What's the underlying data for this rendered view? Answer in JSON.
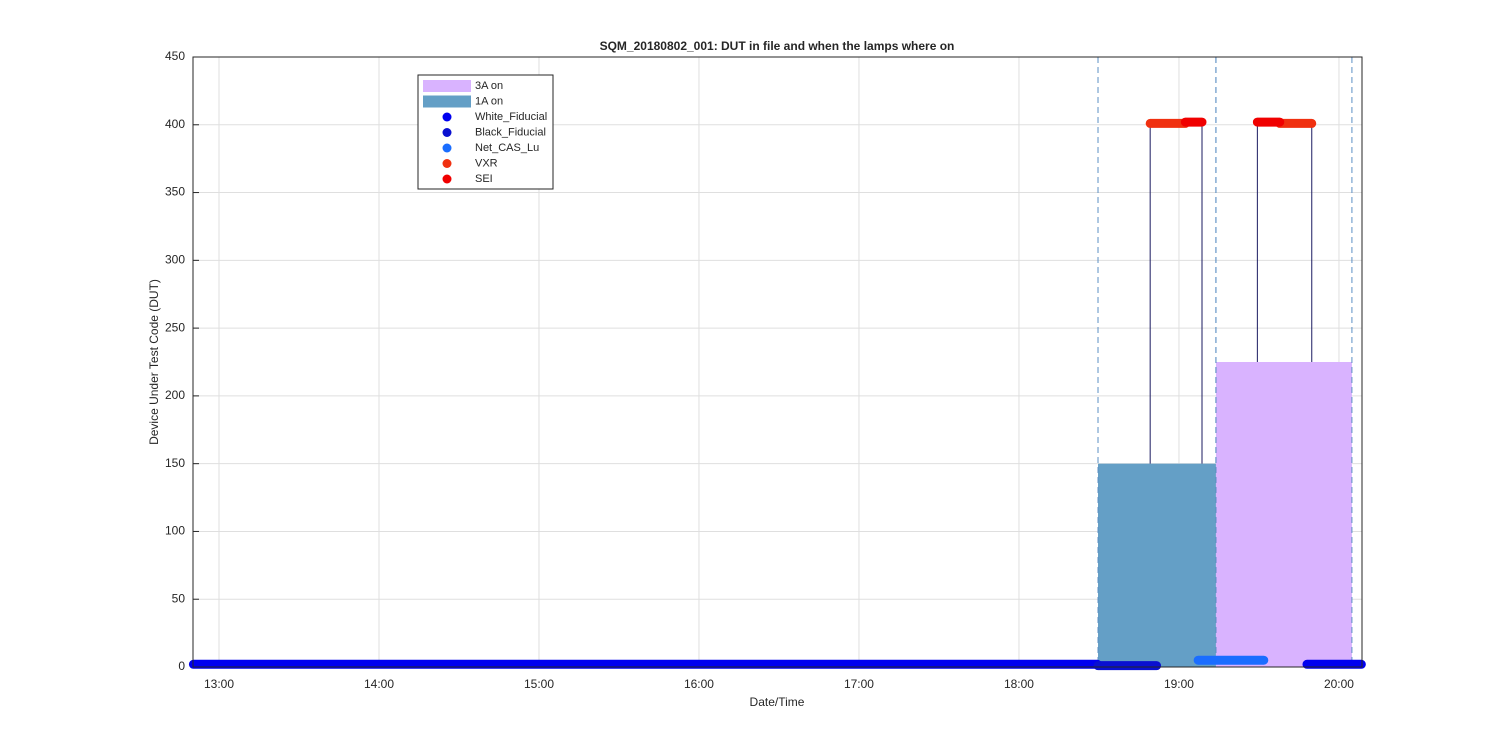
{
  "chart_data": {
    "type": "scatter",
    "title": "SQM_20180802_001: DUT in file and when the lamps where on",
    "xlabel": "Date/Time",
    "ylabel": "Device Under Test Code (DUT)",
    "xlim": [
      12.8375,
      20.144
    ],
    "ylim": [
      0,
      450
    ],
    "xticks": [
      {
        "value": 13,
        "label": "13:00"
      },
      {
        "value": 14,
        "label": "14:00"
      },
      {
        "value": 15,
        "label": "15:00"
      },
      {
        "value": 16,
        "label": "16:00"
      },
      {
        "value": 17,
        "label": "17:00"
      },
      {
        "value": 18,
        "label": "18:00"
      },
      {
        "value": 19,
        "label": "19:00"
      },
      {
        "value": 20,
        "label": "20:00"
      }
    ],
    "yticks": [
      0,
      50,
      100,
      150,
      200,
      250,
      300,
      350,
      400,
      450
    ],
    "grid": true,
    "legend": "upper left",
    "areas": [
      {
        "name": "3A on",
        "color": "#d9b3ff",
        "x": [
          19.231,
          20.081
        ],
        "value": 225
      },
      {
        "name": "1A on",
        "color": "#649fc6",
        "x": [
          18.494,
          19.231
        ],
        "value": 150
      }
    ],
    "series": [
      {
        "name": "White_Fiducial",
        "color": "#0000f0",
        "x": [
          12.84,
          18.49,
          18.6,
          19.8,
          20.14
        ],
        "values": [
          2,
          2,
          null,
          2,
          2
        ]
      },
      {
        "name": "Black_Fiducial",
        "color": "#0a10d0",
        "x": [
          18.494,
          18.86
        ],
        "values": [
          1,
          1
        ]
      },
      {
        "name": "Net_CAS_Lu",
        "color": "#1a6dff",
        "x": [
          19.12,
          19.53
        ],
        "values": [
          5,
          5
        ]
      },
      {
        "name": "VXR",
        "color": "#f03010",
        "x": [
          18.82,
          19.04,
          19.3,
          19.63,
          19.83
        ],
        "values": [
          401,
          401,
          null,
          401,
          401
        ]
      },
      {
        "name": "SEI",
        "color": "#f00000",
        "x": [
          19.04,
          19.144,
          19.3,
          19.49,
          19.63
        ],
        "values": [
          402,
          402,
          null,
          402,
          402
        ]
      }
    ]
  }
}
